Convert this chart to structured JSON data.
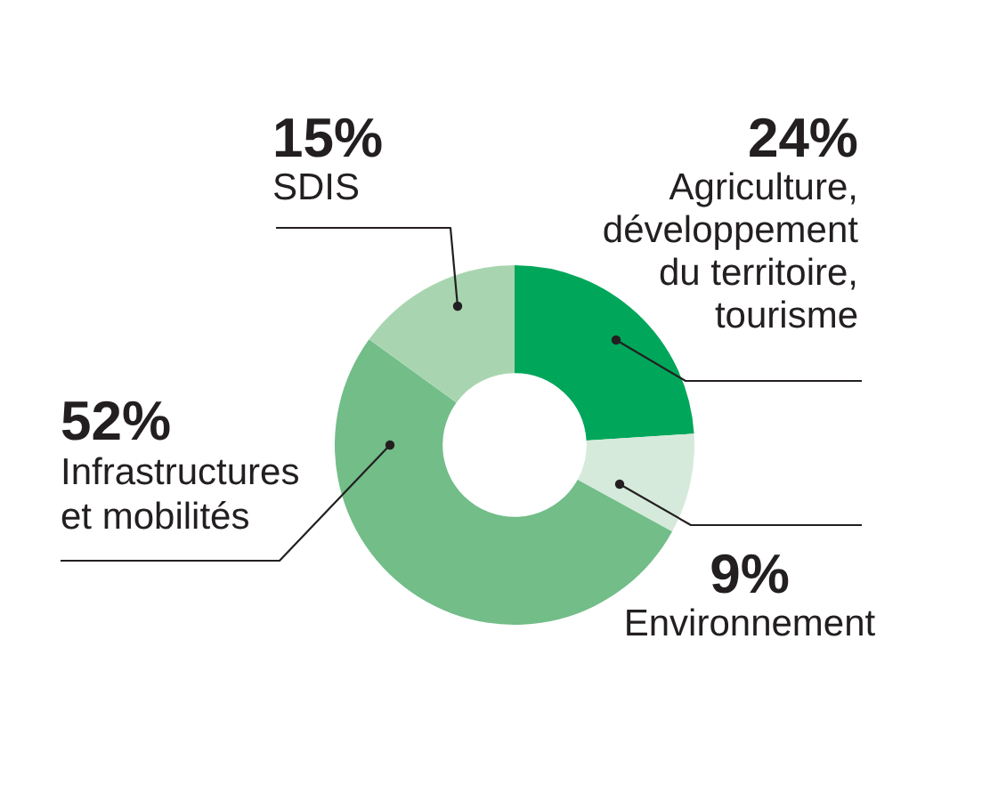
{
  "chart_data": {
    "type": "donut",
    "categories": [
      "Agriculture, développement du territoire, tourisme",
      "Environnement",
      "Infrastructures et mobilités",
      "SDIS"
    ],
    "values": [
      24,
      9,
      52,
      15
    ],
    "value_labels": [
      "24%",
      "9%",
      "52%",
      "15%"
    ],
    "colors": [
      "#00a65a",
      "#d5eadb",
      "#72bd88",
      "#a8d5b0"
    ]
  }
}
